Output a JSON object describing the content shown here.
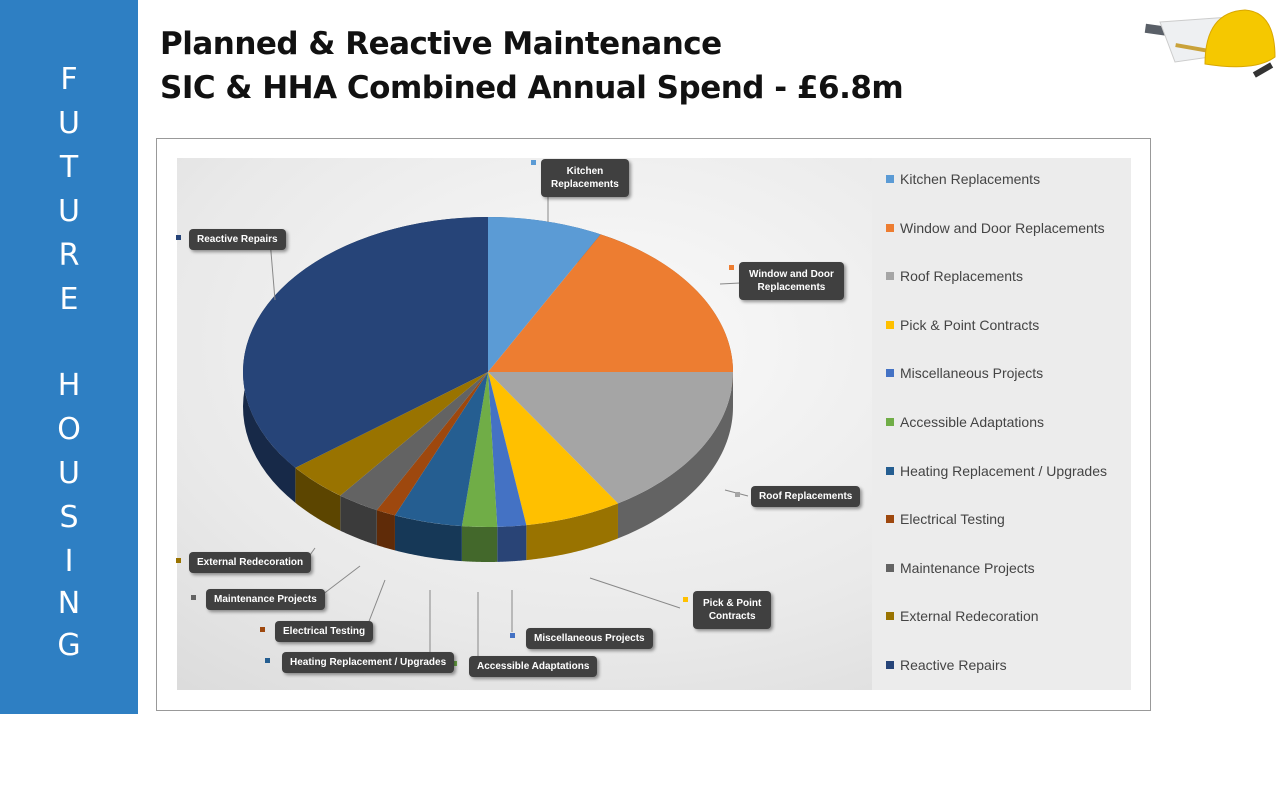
{
  "sidebar": {
    "letters": [
      "F",
      "U",
      "T",
      "U",
      "R",
      "E",
      "H",
      "O",
      "U",
      "S",
      "I",
      "N",
      "G"
    ]
  },
  "header": {
    "title_line1": "Planned & Reactive Maintenance",
    "title_line2": "SIC & HHA Combined Annual Spend - £6.8m"
  },
  "logo": {
    "icon": "hard-hat-and-plans-image"
  },
  "chart_data": {
    "type": "pie",
    "style": "3d",
    "legend_placement": "right",
    "value_unit": "percent of spend (estimated from slice angles)",
    "categories": [
      "Kitchen Replacements",
      "Window and Door Replacements",
      "Roof Replacements",
      "Pick & Point Contracts",
      "Miscellaneous Projects",
      "Accessible Adaptations",
      "Heating Replacement / Upgrades",
      "Electrical Testing",
      "Maintenance Projects",
      "External Redecoration",
      "Reactive Repairs"
    ],
    "values": [
      7.6,
      17.4,
      16.1,
      6.4,
      1.9,
      2.3,
      4.5,
      1.3,
      2.8,
      4.1,
      35.6
    ],
    "colors": [
      "#5b9bd5",
      "#ed7d31",
      "#a5a5a5",
      "#ffc000",
      "#4472c4",
      "#70ad47",
      "#255e91",
      "#9e480e",
      "#636363",
      "#997300",
      "#264478"
    ],
    "callouts": [
      "Kitchen\nReplacements",
      "Window and Door\nReplacements",
      "Roof Replacements",
      "Pick & Point\nContracts",
      "Miscellaneous Projects",
      "Accessible Adaptations",
      "Heating Replacement / Upgrades",
      "Electrical Testing",
      "Maintenance Projects",
      "External Redecoration",
      "Reactive Repairs"
    ]
  }
}
